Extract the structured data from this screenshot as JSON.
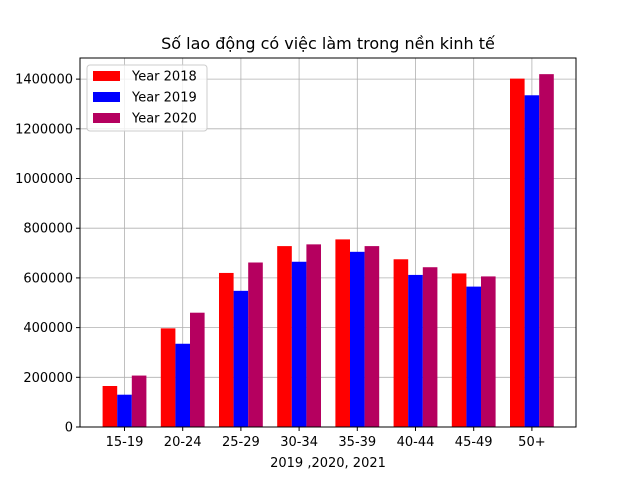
{
  "chart_data": {
    "type": "bar",
    "title": "Số lao động có việc làm trong nền kinh tế",
    "xlabel": "2019 ,2020, 2021",
    "ylabel": "",
    "categories": [
      "15-19",
      "20-24",
      "25-29",
      "30-34",
      "35-39",
      "40-44",
      "45-49",
      "50+"
    ],
    "series": [
      {
        "name": "Year 2018",
        "color": "#ff0000",
        "values": [
          165000,
          397000,
          620000,
          728000,
          755000,
          675000,
          618000,
          1402000
        ]
      },
      {
        "name": "Year 2019",
        "color": "#0000ff",
        "values": [
          130000,
          335000,
          548000,
          665000,
          705000,
          612000,
          565000,
          1335000
        ]
      },
      {
        "name": "Year 2020",
        "color": "#b5005f",
        "values": [
          207000,
          460000,
          662000,
          735000,
          728000,
          643000,
          606000,
          1420000
        ]
      }
    ],
    "yticks": [
      0,
      200000,
      400000,
      600000,
      800000,
      1000000,
      1200000,
      1400000
    ],
    "ylim": [
      0,
      1485000
    ],
    "grid": true,
    "legend_position": "top-left"
  }
}
